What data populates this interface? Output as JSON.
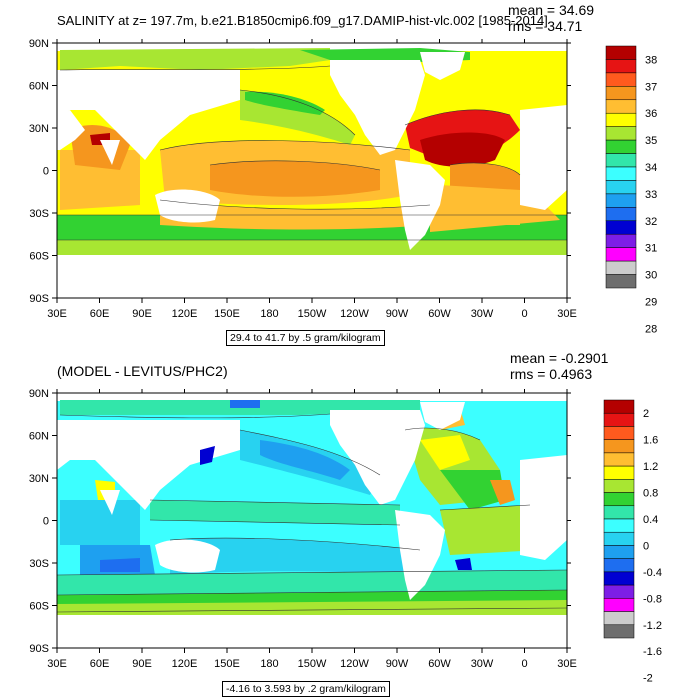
{
  "panels": [
    {
      "id": "top",
      "title": "SALINITY at z= 197.7m, b.e21.B1850cmip6.f09_g17.DAMIP-hist-vlc.002 [1985-2014]",
      "mean_text": "mean = 34.69",
      "rms_text": "rms = 34.71",
      "range_text": "29.4 to 41.7 by .5 gram/kilogram"
    },
    {
      "id": "bottom",
      "title": "(MODEL - LEVITUS/PHC2)",
      "mean_text": "mean = -0.2901",
      "rms_text": "rms = 0.4963",
      "range_text": "-4.16 to 3.593 by .2 gram/kilogram"
    }
  ],
  "chart_data": [
    {
      "type": "heatmap",
      "title": "SALINITY at z= 197.7m, b.e21.B1850cmip6.f09_g17.DAMIP-hist-vlc.002 [1985-2014]",
      "xlabel": "",
      "ylabel": "",
      "x_ticks": [
        "30E",
        "60E",
        "90E",
        "120E",
        "150E",
        "180",
        "150W",
        "120W",
        "90W",
        "60W",
        "30W",
        "0",
        "30E"
      ],
      "y_ticks": [
        "90N",
        "60N",
        "30N",
        "0",
        "30S",
        "60S",
        "90S"
      ],
      "colorbar": {
        "labels": [
          "38",
          "37",
          "36",
          "35",
          "34",
          "33",
          "32",
          "31",
          "30",
          "29",
          "28"
        ],
        "colors": [
          "#b40000",
          "#e61414",
          "#ff5a1e",
          "#f5961e",
          "#ffbe32",
          "#ffff00",
          "#a8e632",
          "#32d232",
          "#32e6aa",
          "#3cffff",
          "#28d2f0",
          "#1ea0f0",
          "#1e6ef0",
          "#0000d2",
          "#7d1ee6",
          "#ff00ff",
          "#cccccc",
          "#6e6e6e"
        ]
      },
      "stats": {
        "mean": 34.69,
        "rms": 34.71
      },
      "contour_range": "29.4 to 41.7 by .5 gram/kilogram",
      "grid": false,
      "legend_position": "right"
    },
    {
      "type": "heatmap",
      "title": "(MODEL - LEVITUS/PHC2)",
      "xlabel": "",
      "ylabel": "",
      "x_ticks": [
        "30E",
        "60E",
        "90E",
        "120E",
        "150E",
        "180",
        "150W",
        "120W",
        "90W",
        "60W",
        "30W",
        "0",
        "30E"
      ],
      "y_ticks": [
        "90N",
        "60N",
        "30N",
        "0",
        "30S",
        "60S",
        "90S"
      ],
      "colorbar": {
        "labels": [
          "2",
          "1.6",
          "1.2",
          "0.8",
          "0.4",
          "0",
          "-0.4",
          "-0.8",
          "-1.2",
          "-1.6",
          "-2"
        ],
        "colors": [
          "#b40000",
          "#e61414",
          "#ff5a1e",
          "#f5961e",
          "#ffbe32",
          "#ffff00",
          "#a8e632",
          "#32d232",
          "#32e6aa",
          "#3cffff",
          "#28d2f0",
          "#1ea0f0",
          "#1e6ef0",
          "#0000d2",
          "#7d1ee6",
          "#ff00ff",
          "#cccccc",
          "#6e6e6e"
        ]
      },
      "stats": {
        "mean": -0.2901,
        "rms": 0.4963
      },
      "contour_range": "-4.16 to 3.593 by .2 gram/kilogram",
      "grid": false,
      "legend_position": "right"
    }
  ],
  "colors": {
    "land": "#ffffff",
    "frame": "#000000",
    "contour": "#333333"
  }
}
